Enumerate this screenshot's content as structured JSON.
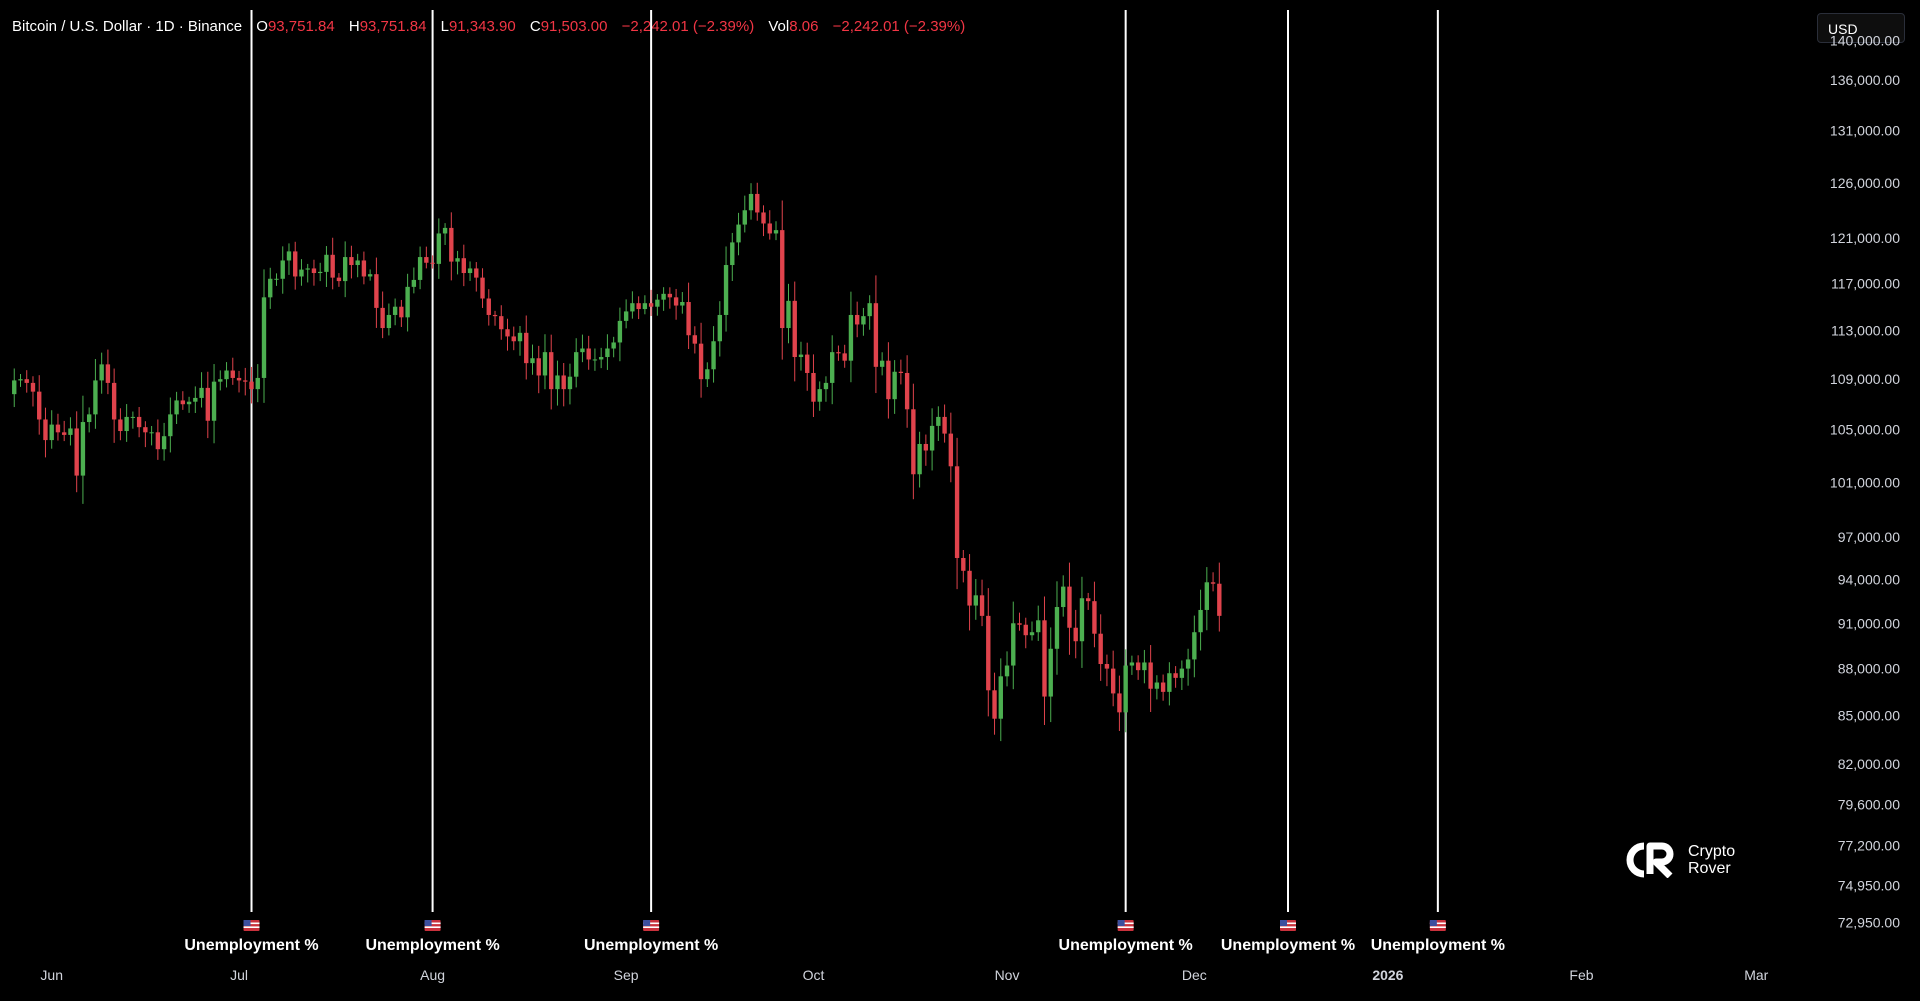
{
  "header": {
    "symbol": "Bitcoin / U.S. Dollar · 1D · Binance",
    "open_label": "O",
    "open": "93,751.84",
    "high_label": "H",
    "high": "93,751.84",
    "low_label": "L",
    "low": "91,343.90",
    "close_label": "C",
    "close": "91,503.00",
    "change": "−2,242.01 (−2.39%)",
    "vol_label": "Vol",
    "vol": "8.06",
    "vol_change": "−2,242.01 (−2.39%)"
  },
  "currency": "USD",
  "logo": {
    "line1": "Crypto",
    "line2": "Rover"
  },
  "colors": {
    "up": "#4caf50",
    "down": "#e0434c",
    "event_line": "#ffffff",
    "background": "#000000"
  },
  "chart_data": {
    "type": "candlestick",
    "y_scale": "log",
    "ylim": [
      72000,
      143000
    ],
    "xlim": [
      "2025-05-25",
      "2026-03-08"
    ],
    "y_ticks": [
      "140,000.00",
      "136,000.00",
      "131,000.00",
      "126,000.00",
      "121,000.00",
      "117,000.00",
      "113,000.00",
      "109,000.00",
      "105,000.00",
      "101,000.00",
      "97,000.00",
      "94,000.00",
      "91,000.00",
      "88,000.00",
      "85,000.00",
      "82,000.00",
      "79,600.00",
      "77,200.00",
      "74,950.00",
      "72,950.00"
    ],
    "x_ticks": [
      {
        "date": "2025-06-01",
        "label": "Jun",
        "bold": false
      },
      {
        "date": "2025-07-01",
        "label": "Jul",
        "bold": false
      },
      {
        "date": "2025-08-01",
        "label": "Aug",
        "bold": false
      },
      {
        "date": "2025-09-01",
        "label": "Sep",
        "bold": false
      },
      {
        "date": "2025-10-01",
        "label": "Oct",
        "bold": false
      },
      {
        "date": "2025-11-01",
        "label": "Nov",
        "bold": false
      },
      {
        "date": "2025-12-01",
        "label": "Dec",
        "bold": false
      },
      {
        "date": "2026-01-01",
        "label": "2026",
        "bold": true
      },
      {
        "date": "2026-02-01",
        "label": "Feb",
        "bold": false
      },
      {
        "date": "2026-03-01",
        "label": "Mar",
        "bold": false
      }
    ],
    "events": [
      {
        "date": "2025-07-03",
        "label": "Unemployment %"
      },
      {
        "date": "2025-08-01",
        "label": "Unemployment %"
      },
      {
        "date": "2025-09-05",
        "label": "Unemployment %"
      },
      {
        "date": "2025-11-20",
        "label": "Unemployment %"
      },
      {
        "date": "2025-12-16",
        "label": "Unemployment %"
      },
      {
        "date": "2026-01-09",
        "label": "Unemployment %"
      }
    ],
    "ohlc_start": "2025-05-25",
    "ohlc_close": [
      107800,
      108900,
      109000,
      108700,
      108000,
      105800,
      104200,
      105400,
      104800,
      104600,
      105100,
      101500,
      105600,
      106200,
      108900,
      110200,
      108700,
      105800,
      104900,
      106000,
      106000,
      105200,
      104800,
      104800,
      103500,
      104500,
      106200,
      107300,
      107000,
      107200,
      107500,
      108300,
      105700,
      108800,
      109000,
      109700,
      109100,
      108900,
      108800,
      108200,
      109100,
      115800,
      117400,
      117400,
      119000,
      119800,
      117600,
      118200,
      118300,
      117900,
      118000,
      119500,
      117500,
      117200,
      119300,
      118600,
      119000,
      117600,
      117800,
      114900,
      113200,
      114300,
      115000,
      114100,
      116700,
      117300,
      119300,
      118800,
      118700,
      121400,
      121900,
      118900,
      119200,
      117900,
      118300,
      117500,
      115700,
      114300,
      114200,
      113100,
      112500,
      112100,
      112800,
      110300,
      110700,
      109300,
      111200,
      108200,
      109300,
      108200,
      109200,
      111200,
      111500,
      110600,
      110600,
      110800,
      111500,
      112000,
      113800,
      114600,
      115300,
      114800,
      115300,
      115000,
      115600,
      116100,
      115800,
      115100,
      115400,
      112600,
      111900,
      109000,
      109800,
      112100,
      114300,
      118600,
      120600,
      122200,
      123500,
      125000,
      123300,
      122300,
      121400,
      121700,
      113200,
      115500,
      110800,
      111000,
      109500,
      107200,
      108200,
      108700,
      111200,
      111100,
      110500,
      114300,
      113500,
      114200,
      115300,
      110000,
      110500,
      107400,
      109600,
      109500,
      106600,
      101600,
      103900,
      103400,
      105300,
      106000,
      104700,
      102200,
      95500,
      94600,
      92200,
      92900,
      91500,
      86600,
      84800,
      87500,
      88200,
      91000,
      90900,
      90200,
      90400,
      91200,
      86200,
      89300,
      92100,
      93500,
      90700,
      89800,
      92700,
      92500,
      90300,
      88300,
      88000,
      86400,
      85200,
      88200,
      88400,
      87900,
      88400,
      86700,
      87100,
      86500,
      87700,
      87400,
      88000,
      88600,
      90400,
      91900,
      93800,
      93700,
      91500
    ]
  }
}
